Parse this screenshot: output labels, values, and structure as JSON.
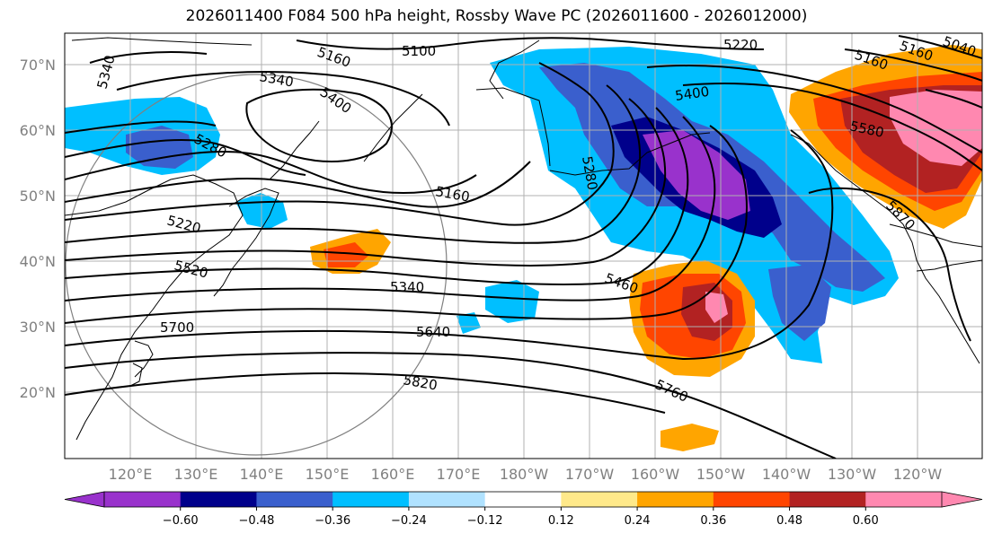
{
  "title": "2026011400 F084 500 hPa height, Rossby Wave PC (2026011600 - 2026012000)",
  "lat_labels": [
    "70°N",
    "60°N",
    "50°N",
    "40°N",
    "30°N",
    "20°N"
  ],
  "lon_labels": [
    "120°E",
    "130°E",
    "140°E",
    "150°E",
    "160°E",
    "170°E",
    "180°W",
    "170°W",
    "160°W",
    "150°W",
    "140°W",
    "130°W",
    "120°W"
  ],
  "contour_labels": [
    "5160",
    "5100",
    "5220",
    "5160",
    "5160",
    "5040",
    "5340",
    "5340",
    "5400",
    "5400",
    "5580",
    "5280",
    "5280",
    "5160",
    "5220",
    "5520",
    "5340",
    "5460",
    "5870",
    "5700",
    "5640",
    "5820",
    "5760"
  ],
  "colorbar": {
    "ticks": [
      "−0.60",
      "−0.48",
      "−0.36",
      "−0.24",
      "−0.12",
      "0.12",
      "0.24",
      "0.36",
      "0.48",
      "0.60"
    ],
    "colors": [
      "#9932CC",
      "#00008B",
      "#3A5FCD",
      "#00BFFF",
      "#B0E2FF",
      "#FFFFFF",
      "#FFE98A",
      "#FFA500",
      "#FF4500",
      "#B22222",
      "#FF88B0"
    ],
    "min_color": "#9932CC",
    "max_color": "#FF88B0"
  }
}
